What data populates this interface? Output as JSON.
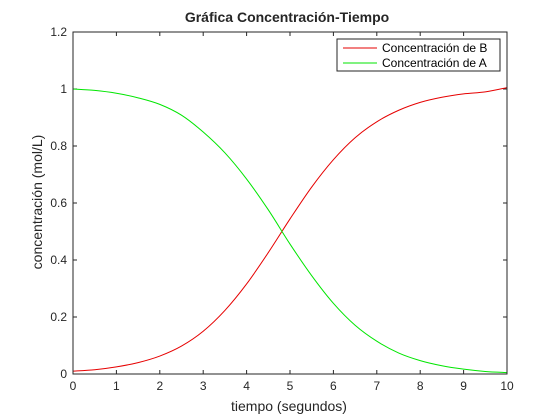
{
  "chart_data": {
    "type": "line",
    "title": "Gráfica Concentración-Tiempo",
    "xlabel": "tiempo (segundos)",
    "ylabel": "concentración (mol/L)",
    "xlim": [
      0,
      10
    ],
    "ylim": [
      0,
      1.2
    ],
    "x_ticks": [
      "0",
      "1",
      "2",
      "3",
      "4",
      "5",
      "6",
      "7",
      "8",
      "9",
      "10"
    ],
    "y_ticks": [
      "0",
      "0.2",
      "0.4",
      "0.6",
      "0.8",
      "1",
      "1.2"
    ],
    "grid": false,
    "legend_position": "top-right",
    "x": [
      0,
      0.5,
      1,
      1.5,
      2,
      2.5,
      3,
      3.5,
      4,
      4.5,
      5,
      5.5,
      6,
      6.5,
      7,
      7.5,
      8,
      8.5,
      9,
      9.5,
      10
    ],
    "series": [
      {
        "name": "Concentración de B",
        "color": "#e60000",
        "values": [
          0.01,
          0.015,
          0.025,
          0.04,
          0.063,
          0.098,
          0.15,
          0.223,
          0.316,
          0.426,
          0.544,
          0.656,
          0.752,
          0.829,
          0.885,
          0.925,
          0.953,
          0.971,
          0.983,
          0.99,
          1.005
        ]
      },
      {
        "name": "Concentración de A",
        "color": "#00e600",
        "values": [
          1.0,
          0.995,
          0.985,
          0.969,
          0.946,
          0.908,
          0.849,
          0.776,
          0.684,
          0.576,
          0.456,
          0.345,
          0.248,
          0.171,
          0.115,
          0.074,
          0.047,
          0.029,
          0.017,
          0.009,
          0.005
        ]
      }
    ]
  }
}
